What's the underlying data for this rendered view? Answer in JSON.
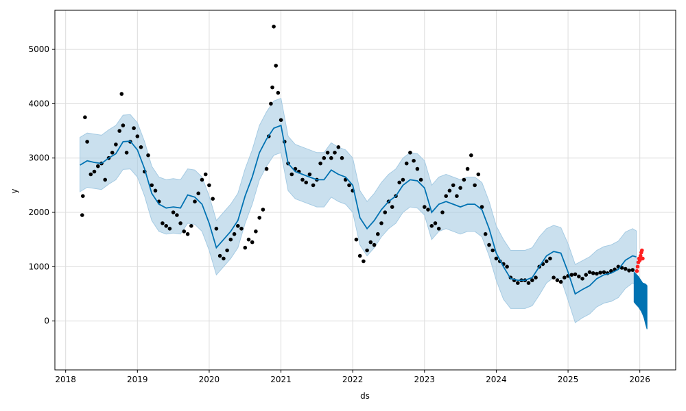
{
  "chart_data": {
    "type": "line",
    "title": "",
    "xlabel": "ds",
    "ylabel": "y",
    "x_ticks": [
      "2018",
      "2019",
      "2020",
      "2021",
      "2022",
      "2023",
      "2024",
      "2025",
      "2026"
    ],
    "y_ticks": [
      "0",
      "1000",
      "2000",
      "3000",
      "4000",
      "5000"
    ],
    "xlim": [
      2017.85,
      2026.5
    ],
    "ylim": [
      -900,
      5720
    ],
    "grid": true,
    "legend": "none",
    "colors": {
      "observed": "#000000",
      "trend": "#0072B2",
      "interval": "#A6CBE3",
      "forecast": "#0072B2",
      "recent": "#FF2020"
    },
    "series": [
      {
        "role": "trend",
        "x": [
          2018.2,
          2018.3,
          2018.4,
          2018.5,
          2018.6,
          2018.7,
          2018.8,
          2018.9,
          2019.0,
          2019.1,
          2019.2,
          2019.3,
          2019.4,
          2019.5,
          2019.6,
          2019.7,
          2019.8,
          2019.9,
          2020.0,
          2020.1,
          2020.2,
          2020.3,
          2020.4,
          2020.5,
          2020.6,
          2020.7,
          2020.8,
          2020.9,
          2021.0,
          2021.1,
          2021.2,
          2021.3,
          2021.4,
          2021.5,
          2021.6,
          2021.7,
          2021.8,
          2021.9,
          2022.0,
          2022.1,
          2022.2,
          2022.3,
          2022.4,
          2022.5,
          2022.6,
          2022.7,
          2022.8,
          2022.9,
          2023.0,
          2023.1,
          2023.2,
          2023.3,
          2023.4,
          2023.5,
          2023.6,
          2023.7,
          2023.8,
          2023.9,
          2024.0,
          2024.1,
          2024.2,
          2024.3,
          2024.4,
          2024.5,
          2024.6,
          2024.7,
          2024.8,
          2024.9,
          2025.0,
          2025.1,
          2025.2,
          2025.3,
          2025.4,
          2025.5,
          2025.6,
          2025.7,
          2025.8,
          2025.9,
          2025.95
        ],
        "y": [
          2870,
          2950,
          2920,
          2900,
          3000,
          3080,
          3300,
          3310,
          3150,
          2800,
          2350,
          2150,
          2080,
          2100,
          2080,
          2320,
          2280,
          2150,
          1800,
          1350,
          1500,
          1650,
          1850,
          2300,
          2650,
          3100,
          3350,
          3550,
          3600,
          2900,
          2750,
          2700,
          2650,
          2600,
          2600,
          2780,
          2700,
          2650,
          2500,
          1900,
          1700,
          1850,
          2050,
          2200,
          2300,
          2500,
          2600,
          2580,
          2450,
          2000,
          2150,
          2200,
          2150,
          2100,
          2150,
          2150,
          2050,
          1700,
          1250,
          1000,
          780,
          750,
          750,
          800,
          1000,
          1200,
          1280,
          1250,
          900,
          500,
          580,
          650,
          780,
          850,
          880,
          950,
          1120,
          1200,
          1180
        ]
      },
      {
        "role": "interval",
        "upper": [
          3380,
          3460,
          3440,
          3420,
          3520,
          3600,
          3790,
          3800,
          3650,
          3300,
          2850,
          2650,
          2600,
          2620,
          2600,
          2800,
          2780,
          2650,
          2300,
          1850,
          2000,
          2150,
          2350,
          2800,
          3150,
          3600,
          3850,
          4050,
          4100,
          3400,
          3250,
          3200,
          3150,
          3100,
          3100,
          3280,
          3200,
          3150,
          3000,
          2400,
          2200,
          2350,
          2550,
          2700,
          2800,
          3000,
          3100,
          3080,
          2950,
          2500,
          2650,
          2700,
          2650,
          2600,
          2650,
          2650,
          2550,
          2200,
          1750,
          1500,
          1300,
          1300,
          1300,
          1350,
          1550,
          1700,
          1760,
          1720,
          1420,
          1040,
          1110,
          1180,
          1300,
          1370,
          1400,
          1470,
          1640,
          1700,
          1660
        ],
        "lower": [
          2380,
          2460,
          2440,
          2420,
          2520,
          2600,
          2790,
          2800,
          2650,
          2300,
          1850,
          1650,
          1600,
          1620,
          1600,
          1800,
          1780,
          1650,
          1300,
          850,
          1000,
          1150,
          1350,
          1800,
          2150,
          2600,
          2850,
          3050,
          3100,
          2400,
          2250,
          2200,
          2150,
          2100,
          2100,
          2280,
          2200,
          2150,
          2000,
          1400,
          1200,
          1350,
          1550,
          1700,
          1800,
          2000,
          2100,
          2080,
          1950,
          1500,
          1650,
          1700,
          1650,
          1600,
          1650,
          1650,
          1550,
          1200,
          750,
          400,
          230,
          230,
          230,
          280,
          480,
          700,
          800,
          780,
          380,
          -30,
          60,
          130,
          260,
          330,
          360,
          430,
          600,
          700,
          660
        ]
      },
      {
        "role": "observed",
        "x": [
          2018.23,
          2018.24,
          2018.27,
          2018.3,
          2018.35,
          2018.4,
          2018.45,
          2018.5,
          2018.55,
          2018.6,
          2018.65,
          2018.7,
          2018.75,
          2018.78,
          2018.8,
          2018.85,
          2018.9,
          2018.95,
          2019.0,
          2019.05,
          2019.1,
          2019.15,
          2019.2,
          2019.25,
          2019.3,
          2019.35,
          2019.4,
          2019.45,
          2019.5,
          2019.55,
          2019.6,
          2019.65,
          2019.7,
          2019.75,
          2019.8,
          2019.85,
          2019.9,
          2019.95,
          2020.0,
          2020.05,
          2020.1,
          2020.15,
          2020.2,
          2020.25,
          2020.3,
          2020.35,
          2020.4,
          2020.45,
          2020.5,
          2020.55,
          2020.6,
          2020.65,
          2020.7,
          2020.75,
          2020.8,
          2020.83,
          2020.86,
          2020.88,
          2020.9,
          2020.93,
          2020.96,
          2021.0,
          2021.05,
          2021.1,
          2021.15,
          2021.2,
          2021.25,
          2021.3,
          2021.35,
          2021.4,
          2021.45,
          2021.5,
          2021.55,
          2021.6,
          2021.65,
          2021.7,
          2021.75,
          2021.8,
          2021.85,
          2021.9,
          2021.95,
          2022.0,
          2022.05,
          2022.1,
          2022.15,
          2022.2,
          2022.25,
          2022.3,
          2022.35,
          2022.4,
          2022.45,
          2022.5,
          2022.55,
          2022.6,
          2022.65,
          2022.7,
          2022.75,
          2022.8,
          2022.85,
          2022.9,
          2022.95,
          2023.0,
          2023.05,
          2023.1,
          2023.15,
          2023.2,
          2023.25,
          2023.3,
          2023.35,
          2023.4,
          2023.45,
          2023.5,
          2023.55,
          2023.6,
          2023.65,
          2023.7,
          2023.75,
          2023.8,
          2023.85,
          2023.9,
          2023.95,
          2024.0,
          2024.05,
          2024.1,
          2024.15,
          2024.2,
          2024.25,
          2024.3,
          2024.35,
          2024.4,
          2024.45,
          2024.5,
          2024.55,
          2024.6,
          2024.65,
          2024.7,
          2024.75,
          2024.8,
          2024.85,
          2024.9,
          2024.95,
          2025.0,
          2025.05,
          2025.1,
          2025.15,
          2025.2,
          2025.25,
          2025.3,
          2025.35,
          2025.4,
          2025.45,
          2025.5,
          2025.55,
          2025.6,
          2025.65,
          2025.7,
          2025.75,
          2025.8,
          2025.85,
          2025.9
        ],
        "y": [
          1950,
          2300,
          3750,
          3300,
          2700,
          2750,
          2850,
          2900,
          2600,
          3000,
          3100,
          3250,
          3500,
          4180,
          3600,
          3100,
          3300,
          3550,
          3400,
          3200,
          2750,
          3050,
          2500,
          2400,
          2200,
          1800,
          1750,
          1700,
          2000,
          1950,
          1800,
          1650,
          1600,
          1750,
          2200,
          2350,
          2600,
          2700,
          2500,
          2250,
          1700,
          1200,
          1150,
          1300,
          1500,
          1600,
          1750,
          1700,
          1350,
          1500,
          1450,
          1650,
          1900,
          2050,
          2800,
          3400,
          4000,
          4300,
          5420,
          4700,
          4200,
          3700,
          3300,
          2900,
          2700,
          2800,
          2750,
          2600,
          2550,
          2700,
          2500,
          2600,
          2900,
          3000,
          3100,
          3000,
          3100,
          3200,
          3000,
          2600,
          2500,
          2400,
          1500,
          1200,
          1100,
          1300,
          1450,
          1400,
          1600,
          1800,
          2000,
          2200,
          2100,
          2300,
          2550,
          2600,
          2900,
          3100,
          2950,
          2800,
          2600,
          2100,
          2050,
          1750,
          1800,
          1700,
          2000,
          2300,
          2400,
          2500,
          2300,
          2450,
          2600,
          2800,
          3050,
          2500,
          2700,
          2100,
          1600,
          1400,
          1300,
          1150,
          1100,
          1050,
          1000,
          800,
          750,
          700,
          750,
          750,
          700,
          750,
          800,
          1000,
          1050,
          1100,
          1150,
          800,
          750,
          720,
          800,
          830,
          850,
          860,
          820,
          780,
          850,
          900,
          880,
          870,
          890,
          900,
          880,
          920,
          950,
          1000,
          980,
          960,
          930,
          940
        ]
      },
      {
        "role": "recent",
        "x": [
          2025.96,
          2025.97,
          2025.98,
          2025.99,
          2026.0,
          2026.01,
          2026.02,
          2026.03,
          2026.04
        ],
        "y": [
          920,
          1000,
          1080,
          1150,
          1120,
          1200,
          1260,
          1300,
          1150
        ]
      },
      {
        "role": "forecast",
        "x": [
          2025.92,
          2025.95,
          2025.98,
          2026.0,
          2026.02,
          2026.04,
          2026.06,
          2026.08,
          2026.1
        ],
        "upper": [
          900,
          860,
          820,
          780,
          740,
          700,
          690,
          680,
          650
        ],
        "lower": [
          350,
          300,
          260,
          220,
          180,
          120,
          50,
          -60,
          -150
        ]
      }
    ]
  }
}
